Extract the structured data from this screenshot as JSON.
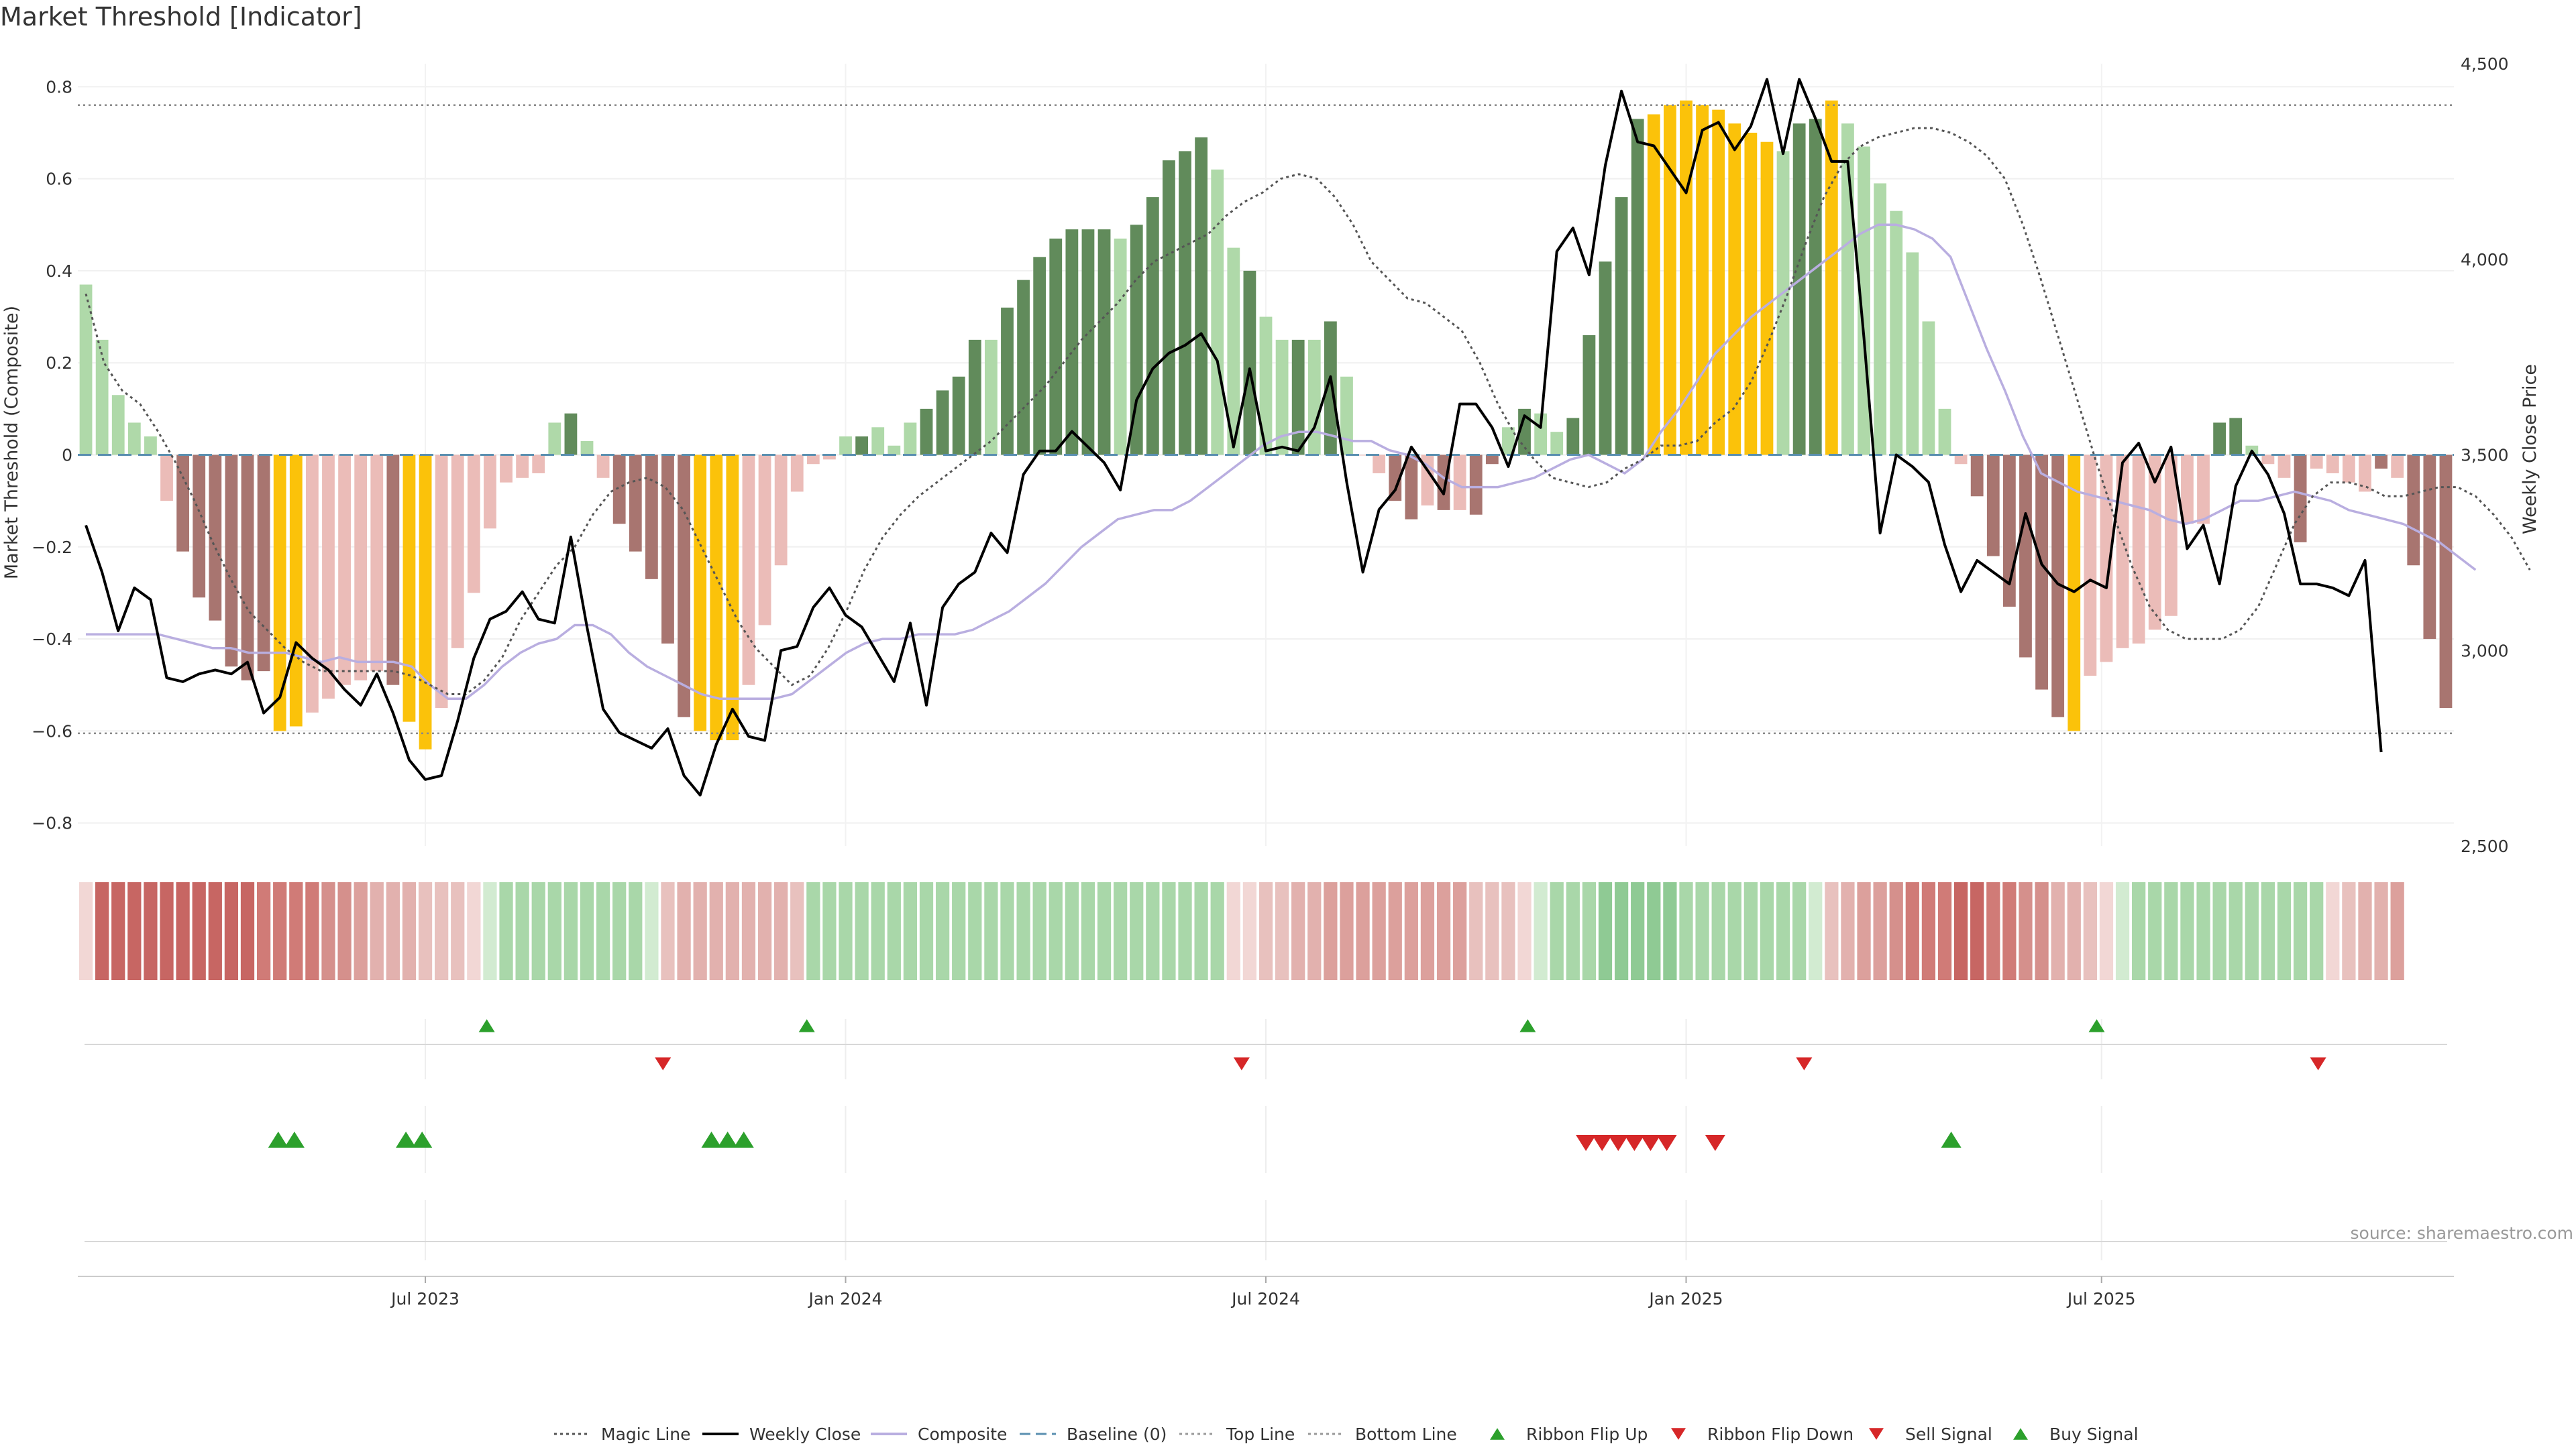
{
  "chart_data": {
    "type": "bar",
    "title": "Market Threshold [Indicator]",
    "ylabel_left": "Market Threshold (Composite)",
    "ylabel_right": "Weekly Close Price",
    "source": "source: sharemaestro.com",
    "ylim_left": [
      -0.85,
      0.85
    ],
    "ylim_right": [
      2500,
      4500
    ],
    "yticks_left": [
      -0.8,
      -0.6,
      -0.4,
      -0.2,
      0,
      0.2,
      0.4,
      0.6,
      0.8
    ],
    "ytick_labels_left": [
      "−0.8",
      "−0.6",
      "−0.4",
      "−0.2",
      "0",
      "0.2",
      "0.4",
      "0.6",
      "0.8"
    ],
    "yticks_right": [
      2500,
      3000,
      3500,
      4000,
      4500
    ],
    "ytick_labels_right": [
      "2,500",
      "3,000",
      "3,500",
      "4,000",
      "4,500"
    ],
    "x_ticks": [
      {
        "week": 21,
        "label": "Jul 2023"
      },
      {
        "week": 47,
        "label": "Jan 2024"
      },
      {
        "week": 73,
        "label": "Jul 2024"
      },
      {
        "week": 99,
        "label": "Jan 2025"
      },
      {
        "week": 124.7,
        "label": "Jul 2025"
      }
    ],
    "x_range": [
      0,
      143
    ],
    "top_line": 0.76,
    "bottom_line": -0.605,
    "baseline": 0,
    "composite_bars": [
      0.37,
      0.25,
      0.13,
      0.07,
      0.04,
      -0.1,
      -0.21,
      -0.31,
      -0.36,
      -0.46,
      -0.49,
      -0.47,
      -0.6,
      -0.59,
      -0.56,
      -0.53,
      -0.5,
      -0.49,
      -0.47,
      -0.5,
      -0.58,
      -0.64,
      -0.55,
      -0.42,
      -0.3,
      -0.16,
      -0.06,
      -0.05,
      -0.04,
      0.07,
      0.09,
      0.03,
      -0.05,
      -0.15,
      -0.21,
      -0.27,
      -0.41,
      -0.57,
      -0.6,
      -0.62,
      -0.62,
      -0.5,
      -0.37,
      -0.24,
      -0.08,
      -0.02,
      -0.01,
      0.04,
      0.04,
      0.06,
      0.02,
      0.07,
      0.1,
      0.14,
      0.17,
      0.25,
      0.25,
      0.32,
      0.38,
      0.43,
      0.47,
      0.49,
      0.49,
      0.49,
      0.47,
      0.5,
      0.56,
      0.64,
      0.66,
      0.69,
      0.62,
      0.45,
      0.4,
      0.3,
      0.25,
      0.25,
      0.25,
      0.29,
      0.17,
      0.0,
      -0.04,
      -0.1,
      -0.14,
      -0.11,
      -0.12,
      -0.12,
      -0.13,
      -0.02,
      0.06,
      0.1,
      0.09,
      0.05,
      0.08,
      0.26,
      0.42,
      0.56,
      0.73,
      0.74,
      0.76,
      0.77,
      0.76,
      0.75,
      0.72,
      0.7,
      0.68,
      0.66,
      0.72,
      0.73,
      0.77,
      0.72,
      0.67,
      0.59,
      0.53,
      0.44,
      0.29,
      0.1,
      -0.02,
      -0.09,
      -0.22,
      -0.33,
      -0.44,
      -0.51,
      -0.57,
      -0.6,
      -0.48,
      -0.45,
      -0.42,
      -0.41,
      -0.38,
      -0.35,
      -0.15,
      -0.15,
      0.07,
      0.08,
      0.02,
      -0.02,
      -0.05,
      -0.19,
      -0.03,
      -0.04,
      -0.06,
      -0.08,
      -0.03,
      -0.05,
      -0.24,
      -0.4,
      -0.55
    ],
    "bar_colors": [
      "#afd9a9",
      "#afd9a9",
      "#afd9a9",
      "#afd9a9",
      "#afd9a9",
      "#ebbcb8",
      "#a87570",
      "#a87570",
      "#a87570",
      "#a87570",
      "#a87570",
      "#a87570",
      "#fbc20a",
      "#fbc20a",
      "#ebbcb8",
      "#ebbcb8",
      "#ebbcb8",
      "#ebbcb8",
      "#ebbcb8",
      "#a87570",
      "#fbc20a",
      "#fbc20a",
      "#ebbcb8",
      "#ebbcb8",
      "#ebbcb8",
      "#ebbcb8",
      "#ebbcb8",
      "#ebbcb8",
      "#ebbcb8",
      "#afd9a9",
      "#618b5b",
      "#afd9a9",
      "#ebbcb8",
      "#a87570",
      "#a87570",
      "#a87570",
      "#a87570",
      "#a87570",
      "#fbc20a",
      "#fbc20a",
      "#fbc20a",
      "#ebbcb8",
      "#ebbcb8",
      "#ebbcb8",
      "#ebbcb8",
      "#ebbcb8",
      "#ebbcb8",
      "#afd9a9",
      "#618b5b",
      "#afd9a9",
      "#afd9a9",
      "#afd9a9",
      "#618b5b",
      "#618b5b",
      "#618b5b",
      "#618b5b",
      "#afd9a9",
      "#618b5b",
      "#618b5b",
      "#618b5b",
      "#618b5b",
      "#618b5b",
      "#618b5b",
      "#618b5b",
      "#afd9a9",
      "#618b5b",
      "#618b5b",
      "#618b5b",
      "#618b5b",
      "#618b5b",
      "#afd9a9",
      "#afd9a9",
      "#618b5b",
      "#afd9a9",
      "#afd9a9",
      "#618b5b",
      "#afd9a9",
      "#618b5b",
      "#afd9a9",
      "#ebbcb8",
      "#ebbcb8",
      "#a87570",
      "#a87570",
      "#ebbcb8",
      "#a87570",
      "#ebbcb8",
      "#a87570",
      "#a87570",
      "#afd9a9",
      "#618b5b",
      "#afd9a9",
      "#afd9a9",
      "#618b5b",
      "#618b5b",
      "#618b5b",
      "#618b5b",
      "#618b5b",
      "#fbc20a",
      "#fbc20a",
      "#fbc20a",
      "#fbc20a",
      "#fbc20a",
      "#fbc20a",
      "#fbc20a",
      "#fbc20a",
      "#afd9a9",
      "#618b5b",
      "#618b5b",
      "#fbc20a",
      "#afd9a9",
      "#afd9a9",
      "#afd9a9",
      "#afd9a9",
      "#afd9a9",
      "#afd9a9",
      "#afd9a9",
      "#ebbcb8",
      "#a87570",
      "#a87570",
      "#a87570",
      "#a87570",
      "#a87570",
      "#a87570",
      "#fbc20a",
      "#ebbcb8",
      "#ebbcb8",
      "#ebbcb8",
      "#ebbcb8",
      "#ebbcb8",
      "#ebbcb8",
      "#ebbcb8",
      "#ebbcb8",
      "#618b5b",
      "#618b5b",
      "#afd9a9",
      "#ebbcb8",
      "#ebbcb8",
      "#a87570",
      "#ebbcb8",
      "#ebbcb8",
      "#ebbcb8",
      "#ebbcb8",
      "#a87570",
      "#ebbcb8",
      "#a87570",
      "#a87570",
      "#a87570"
    ],
    "weekly_close": [
      3320,
      3200,
      3050,
      3160,
      3130,
      2930,
      2920,
      2940,
      2950,
      2940,
      2970,
      2840,
      2880,
      3020,
      2980,
      2950,
      2900,
      2860,
      2940,
      2840,
      2720,
      2670,
      2680,
      2820,
      2980,
      3080,
      3100,
      3150,
      3080,
      3070,
      3290,
      3060,
      2850,
      2790,
      2770,
      2750,
      2800,
      2680,
      2630,
      2760,
      2850,
      2780,
      2770,
      3000,
      3010,
      3110,
      3160,
      3090,
      3060,
      2990,
      2920,
      3070,
      2860,
      3110,
      3170,
      3200,
      3300,
      3250,
      3450,
      3510,
      3510,
      3560,
      3520,
      3480,
      3410,
      3640,
      3720,
      3760,
      3780,
      3810,
      3740,
      3520,
      3720,
      3510,
      3520,
      3510,
      3570,
      3700,
      3430,
      3200,
      3360,
      3410,
      3520,
      3460,
      3400,
      3630,
      3630,
      3570,
      3470,
      3600,
      3570,
      4020,
      4080,
      3960,
      4240,
      4430,
      4300,
      4290,
      4230,
      4170,
      4330,
      4350,
      4280,
      4340,
      4460,
      4270,
      4460,
      4360,
      4250,
      4250,
      3800,
      3300,
      3500,
      3470,
      3430,
      3270,
      3150,
      3230,
      3200,
      3170,
      3350,
      3220,
      3170,
      3150,
      3180,
      3160,
      3480,
      3530,
      3430,
      3520,
      3260,
      3320,
      3170,
      3420,
      3510,
      3450,
      3350,
      3170,
      3170,
      3160,
      3140,
      3230,
      2740
    ],
    "magic_line": [
      0.35,
      0.2,
      0.14,
      0.11,
      0.05,
      -0.02,
      -0.1,
      -0.19,
      -0.27,
      -0.34,
      -0.38,
      -0.42,
      -0.45,
      -0.47,
      -0.47,
      -0.47,
      -0.47,
      -0.47,
      -0.48,
      -0.5,
      -0.52,
      -0.52,
      -0.49,
      -0.44,
      -0.36,
      -0.3,
      -0.24,
      -0.2,
      -0.13,
      -0.08,
      -0.06,
      -0.05,
      -0.07,
      -0.12,
      -0.2,
      -0.28,
      -0.36,
      -0.42,
      -0.46,
      -0.5,
      -0.48,
      -0.42,
      -0.34,
      -0.25,
      -0.18,
      -0.13,
      -0.09,
      -0.06,
      -0.03,
      -0.0,
      0.03,
      0.07,
      0.11,
      0.15,
      0.2,
      0.25,
      0.29,
      0.33,
      0.38,
      0.42,
      0.44,
      0.46,
      0.48,
      0.52,
      0.55,
      0.57,
      0.6,
      0.61,
      0.6,
      0.56,
      0.5,
      0.42,
      0.38,
      0.34,
      0.33,
      0.3,
      0.27,
      0.2,
      0.11,
      0.04,
      -0.01,
      -0.05,
      -0.06,
      -0.07,
      -0.06,
      -0.03,
      -0.01,
      0.02,
      0.02,
      0.03,
      0.07,
      0.1,
      0.16,
      0.25,
      0.35,
      0.46,
      0.56,
      0.63,
      0.67,
      0.69,
      0.7,
      0.71,
      0.71,
      0.7,
      0.68,
      0.65,
      0.6,
      0.5,
      0.38,
      0.25,
      0.12,
      -0.01,
      -0.13,
      -0.24,
      -0.33,
      -0.38,
      -0.4,
      -0.4,
      -0.4,
      -0.38,
      -0.33,
      -0.24,
      -0.15,
      -0.09,
      -0.06,
      -0.06,
      -0.07,
      -0.09,
      -0.09,
      -0.08,
      -0.07,
      -0.07,
      -0.09,
      -0.13,
      -0.18,
      -0.25
    ],
    "magic_line_start": 0,
    "magic_line_step": 1.12,
    "composite_line": [
      -0.39,
      -0.39,
      -0.39,
      -0.39,
      -0.39,
      -0.4,
      -0.41,
      -0.42,
      -0.42,
      -0.43,
      -0.43,
      -0.43,
      -0.44,
      -0.45,
      -0.44,
      -0.45,
      -0.45,
      -0.45,
      -0.46,
      -0.5,
      -0.53,
      -0.53,
      -0.5,
      -0.46,
      -0.43,
      -0.41,
      -0.4,
      -0.37,
      -0.37,
      -0.39,
      -0.43,
      -0.46,
      -0.48,
      -0.5,
      -0.52,
      -0.53,
      -0.53,
      -0.53,
      -0.53,
      -0.52,
      -0.49,
      -0.46,
      -0.43,
      -0.41,
      -0.4,
      -0.4,
      -0.39,
      -0.39,
      -0.39,
      -0.38,
      -0.36,
      -0.34,
      -0.31,
      -0.28,
      -0.24,
      -0.2,
      -0.17,
      -0.14,
      -0.13,
      -0.12,
      -0.12,
      -0.1,
      -0.07,
      -0.04,
      -0.01,
      0.02,
      0.04,
      0.05,
      0.05,
      0.04,
      0.03,
      0.03,
      0.01,
      -0.0,
      -0.02,
      -0.05,
      -0.07,
      -0.07,
      -0.07,
      -0.06,
      -0.05,
      -0.03,
      -0.01,
      -0.0,
      -0.02,
      -0.04,
      -0.01,
      0.05,
      0.1,
      0.16,
      0.22,
      0.26,
      0.3,
      0.33,
      0.36,
      0.39,
      0.42,
      0.45,
      0.48,
      0.5,
      0.5,
      0.49,
      0.47,
      0.43,
      0.33,
      0.23,
      0.14,
      0.04,
      -0.04,
      -0.06,
      -0.08,
      -0.09,
      -0.1,
      -0.11,
      -0.12,
      -0.14,
      -0.15,
      -0.14,
      -0.12,
      -0.1,
      -0.1,
      -0.09,
      -0.08,
      -0.09,
      -0.1,
      -0.12,
      -0.13,
      -0.14,
      -0.15,
      -0.17,
      -0.19,
      -0.22,
      -0.25
    ],
    "composite_line_start": 0,
    "composite_line_step": 1.12,
    "ribbon_colors": [
      "#f2d7d5",
      "#c76663",
      "#c76663",
      "#c76663",
      "#c76663",
      "#c76663",
      "#c76663",
      "#c76663",
      "#c76663",
      "#c76663",
      "#c76663",
      "#d07b77",
      "#d07b77",
      "#d07b77",
      "#d07b77",
      "#d5908c",
      "#d5908c",
      "#dca09c",
      "#e2b1ae",
      "#e2b1ae",
      "#e2b1ae",
      "#e8c1be",
      "#e8c1be",
      "#e8c1be",
      "#f2d7d5",
      "#d2ebd1",
      "#a9d7a9",
      "#a9d7a9",
      "#a9d7a9",
      "#a9d7a9",
      "#a9d7a9",
      "#a9d7a9",
      "#a9d7a9",
      "#a9d7a9",
      "#a9d7a9",
      "#d2ebd1",
      "#e8c1be",
      "#e2b1ae",
      "#e2b1ae",
      "#e2b1ae",
      "#e2b1ae",
      "#e2b1ae",
      "#e2b1ae",
      "#e2b1ae",
      "#e8c1be",
      "#a9d7a9",
      "#a9d7a9",
      "#a9d7a9",
      "#a9d7a9",
      "#a9d7a9",
      "#a9d7a9",
      "#a9d7a9",
      "#a9d7a9",
      "#a9d7a9",
      "#a9d7a9",
      "#a9d7a9",
      "#a9d7a9",
      "#a9d7a9",
      "#a9d7a9",
      "#a9d7a9",
      "#a9d7a9",
      "#a9d7a9",
      "#a9d7a9",
      "#a9d7a9",
      "#a9d7a9",
      "#a9d7a9",
      "#a9d7a9",
      "#a9d7a9",
      "#a9d7a9",
      "#a9d7a9",
      "#a9d7a9",
      "#f2d7d5",
      "#f2d7d5",
      "#e8c1be",
      "#e8c1be",
      "#e2b1ae",
      "#e2b1ae",
      "#dca09c",
      "#dca09c",
      "#dca09c",
      "#dca09c",
      "#dca09c",
      "#dca09c",
      "#dca09c",
      "#dca09c",
      "#dca09c",
      "#e8c1be",
      "#e8c1be",
      "#e8c1be",
      "#f2d7d5",
      "#d2ebd1",
      "#a9d7a9",
      "#a9d7a9",
      "#a9d7a9",
      "#8fca94",
      "#8fca94",
      "#8fca94",
      "#8fca94",
      "#8fca94",
      "#a9d7a9",
      "#a9d7a9",
      "#a9d7a9",
      "#a9d7a9",
      "#a9d7a9",
      "#a9d7a9",
      "#a9d7a9",
      "#a9d7a9",
      "#d2ebd1",
      "#e8c1be",
      "#e2b1ae",
      "#dca09c",
      "#dca09c",
      "#d5908c",
      "#d07b77",
      "#d07b77",
      "#d07b77",
      "#c76663",
      "#c76663",
      "#d07b77",
      "#d07b77",
      "#d5908c",
      "#d5908c",
      "#e2b1ae",
      "#e2b1ae",
      "#e8c1be",
      "#f2d7d5",
      "#d2ebd1",
      "#a9d7a9",
      "#a9d7a9",
      "#a9d7a9",
      "#a9d7a9",
      "#a9d7a9",
      "#a9d7a9",
      "#a9d7a9",
      "#a9d7a9",
      "#a9d7a9",
      "#a9d7a9",
      "#a9d7a9",
      "#a9d7a9",
      "#f2d7d5",
      "#e8c1be",
      "#e2b1ae",
      "#e2b1ae",
      "#dca09c"
    ],
    "ribbon_flip_up_weeks": [
      24.8,
      44.6,
      89.2,
      124.4
    ],
    "ribbon_flip_down_weeks": [
      35.7,
      71.5,
      106.3,
      138.1
    ],
    "buy_signal_weeks": [
      11.9,
      12.9,
      19.8,
      20.8,
      38.7,
      39.7,
      40.7,
      115.4
    ],
    "sell_signal_weeks": [
      92.8,
      93.8,
      94.8,
      95.8,
      96.8,
      97.8,
      100.8
    ],
    "legend": [
      {
        "name": "Magic Line",
        "kind": "dotted-line",
        "color": "#555555"
      },
      {
        "name": "Weekly Close",
        "kind": "solid-line",
        "color": "#000000"
      },
      {
        "name": "Composite",
        "kind": "solid-line",
        "color": "#b9aee0"
      },
      {
        "name": "Baseline (0)",
        "kind": "dashed-line",
        "color": "#5a8fb0"
      },
      {
        "name": "Top Line",
        "kind": "dotted-line",
        "color": "#999999"
      },
      {
        "name": "Bottom Line",
        "kind": "dotted-line",
        "color": "#999999"
      },
      {
        "name": "Ribbon Flip Up",
        "kind": "triangle-up",
        "color": "#2ca02c"
      },
      {
        "name": "Ribbon Flip Down",
        "kind": "triangle-down",
        "color": "#d62728"
      },
      {
        "name": "Sell Signal",
        "kind": "triangle-down",
        "color": "#d62728"
      },
      {
        "name": "Buy Signal",
        "kind": "triangle-up",
        "color": "#2ca02c"
      }
    ],
    "legend_position": "bottom-center"
  }
}
